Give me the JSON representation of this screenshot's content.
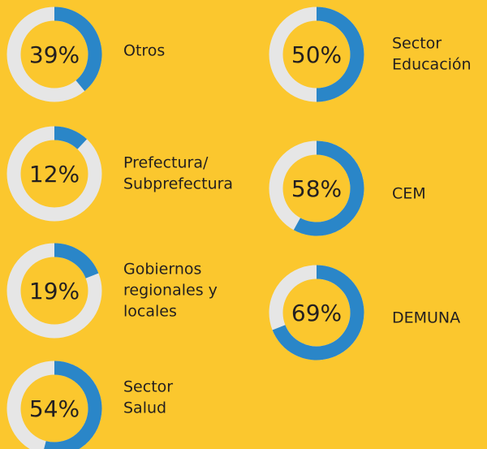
{
  "chart_data": [
    {
      "type": "donut",
      "title_lines": [
        "Otros"
      ],
      "values": [
        39
      ],
      "value_labels": [
        "39%"
      ],
      "color": "#2a86c8",
      "track_color": "#e6e6e6"
    },
    {
      "type": "donut",
      "title_lines": [
        "Prefectura/",
        "Subprefectura"
      ],
      "values": [
        12
      ],
      "value_labels": [
        "12%"
      ],
      "color": "#2a86c8",
      "track_color": "#e6e6e6"
    },
    {
      "type": "donut",
      "title_lines": [
        "Gobiernos",
        "regionales y",
        "locales"
      ],
      "values": [
        19
      ],
      "value_labels": [
        "19%"
      ],
      "color": "#2a86c8",
      "track_color": "#e6e6e6"
    },
    {
      "type": "donut",
      "title_lines": [
        "Sector",
        "Salud"
      ],
      "values": [
        54
      ],
      "value_labels": [
        "54%"
      ],
      "color": "#2a86c8",
      "track_color": "#e6e6e6"
    },
    {
      "type": "donut",
      "title_lines": [
        "Sector",
        "Educación"
      ],
      "values": [
        50
      ],
      "value_labels": [
        "50%"
      ],
      "color": "#2a86c8",
      "track_color": "#e6e6e6"
    },
    {
      "type": "donut",
      "title_lines": [
        "CEM"
      ],
      "values": [
        58
      ],
      "value_labels": [
        "58%"
      ],
      "color": "#2a86c8",
      "track_color": "#e6e6e6"
    },
    {
      "type": "donut",
      "title_lines": [
        "DEMUNA"
      ],
      "values": [
        69
      ],
      "value_labels": [
        "69%"
      ],
      "color": "#2a86c8",
      "track_color": "#e6e6e6"
    }
  ]
}
